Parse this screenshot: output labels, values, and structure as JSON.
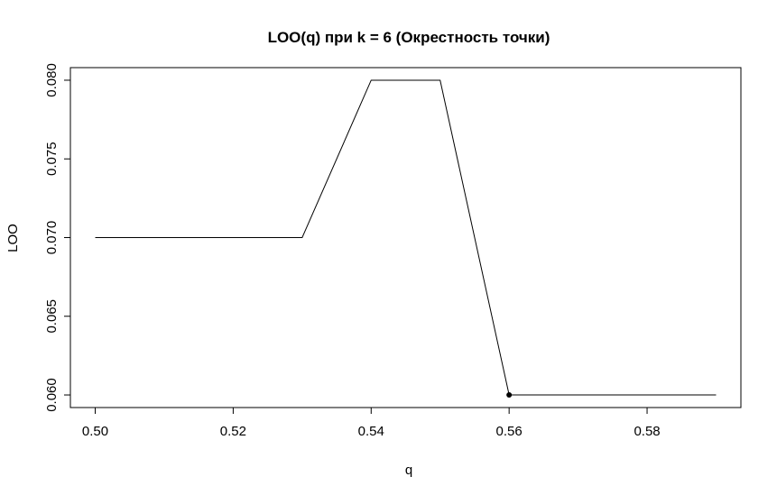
{
  "chart_data": {
    "type": "line",
    "title": "LOO(q) при k = 6 (Окрестность точки)",
    "xlabel": "q",
    "ylabel": "LOO",
    "x": [
      0.5,
      0.51,
      0.52,
      0.53,
      0.54,
      0.55,
      0.56,
      0.57,
      0.58,
      0.59
    ],
    "y": [
      0.07,
      0.07,
      0.07,
      0.07,
      0.08,
      0.08,
      0.06,
      0.06,
      0.06,
      0.06
    ],
    "xlim": [
      0.4964,
      0.5936
    ],
    "ylim": [
      0.0592,
      0.0808
    ],
    "xticks": [
      0.5,
      0.52,
      0.54,
      0.56,
      0.58
    ],
    "xtick_labels": [
      "0.50",
      "0.52",
      "0.54",
      "0.56",
      "0.58"
    ],
    "yticks": [
      0.06,
      0.065,
      0.07,
      0.075,
      0.08
    ],
    "ytick_labels": [
      "0.060",
      "0.065",
      "0.070",
      "0.075",
      "0.080"
    ],
    "highlight_point": {
      "x": 0.56,
      "y": 0.06
    },
    "line_color": "#000000",
    "grid": false,
    "legend": false
  }
}
